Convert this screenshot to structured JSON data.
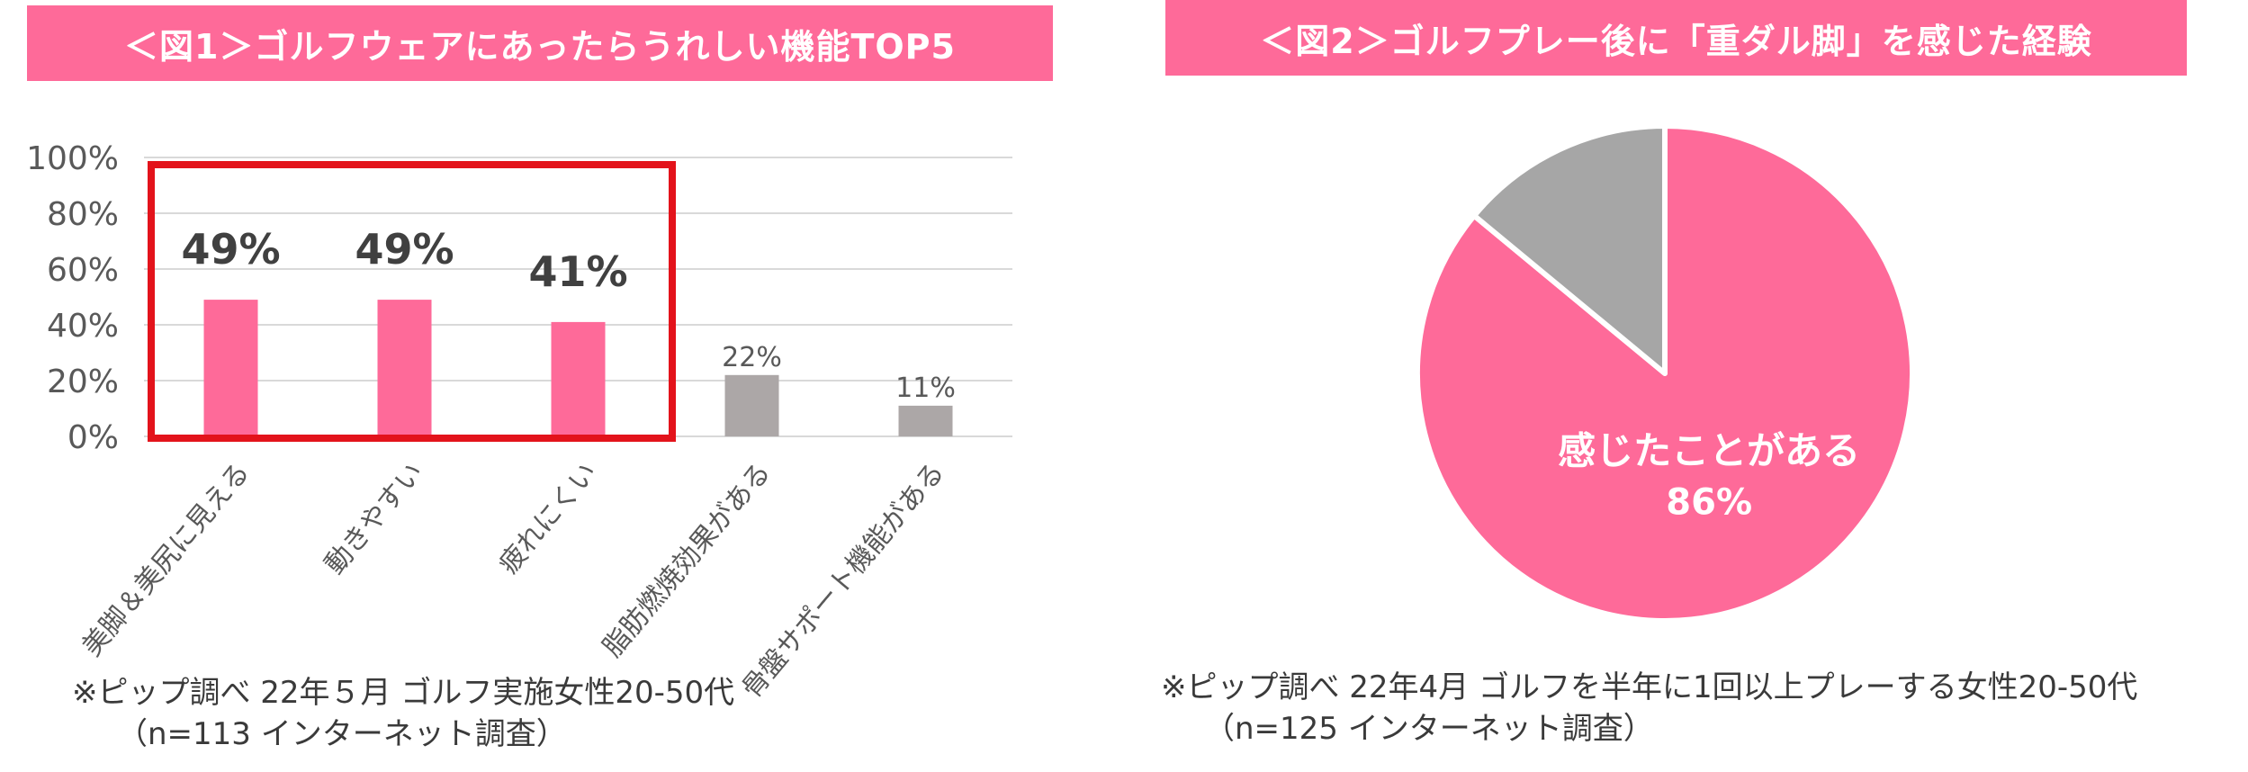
{
  "chart_data": [
    {
      "type": "bar",
      "title": "＜図1＞ゴルフウェアにあったらうれしい機能TOP5",
      "categories": [
        "美脚＆美尻に見える",
        "動きやすい",
        "疲れにくい",
        "脂肪燃焼効果がある",
        "骨盤サポート機能がある"
      ],
      "values": [
        49,
        49,
        41,
        22,
        11
      ],
      "value_labels": [
        "49%",
        "49%",
        "41%",
        "22%",
        "11%"
      ],
      "highlighted": [
        true,
        true,
        true,
        false,
        false
      ],
      "yticks": [
        "0%",
        "20%",
        "40%",
        "60%",
        "80%",
        "100%"
      ],
      "ylim": [
        0,
        100
      ],
      "grid": true,
      "colors": {
        "highlight": "#fe6a99",
        "other": "#aca7a7",
        "box": "#e3131b",
        "grid": "#d9d9d9"
      },
      "note": [
        "※ピップ調べ 22年５月 ゴルフ実施女性20-50代",
        "（n=113 インターネット調査）"
      ]
    },
    {
      "type": "pie",
      "title": "＜図2＞ゴルフプレー後に「重ダル脚」を感じた経験",
      "slices": [
        {
          "label": "感じたことがある",
          "value": 86,
          "value_label": "86%",
          "color": "#fe6a99"
        },
        {
          "label": "",
          "value": 14,
          "value_label": "",
          "color": "#a6a6a6"
        }
      ],
      "note": [
        "※ピップ調べ 22年4月 ゴルフを半年に1回以上プレーする女性20-50代",
        "（n=125 インターネット調査）"
      ]
    }
  ]
}
